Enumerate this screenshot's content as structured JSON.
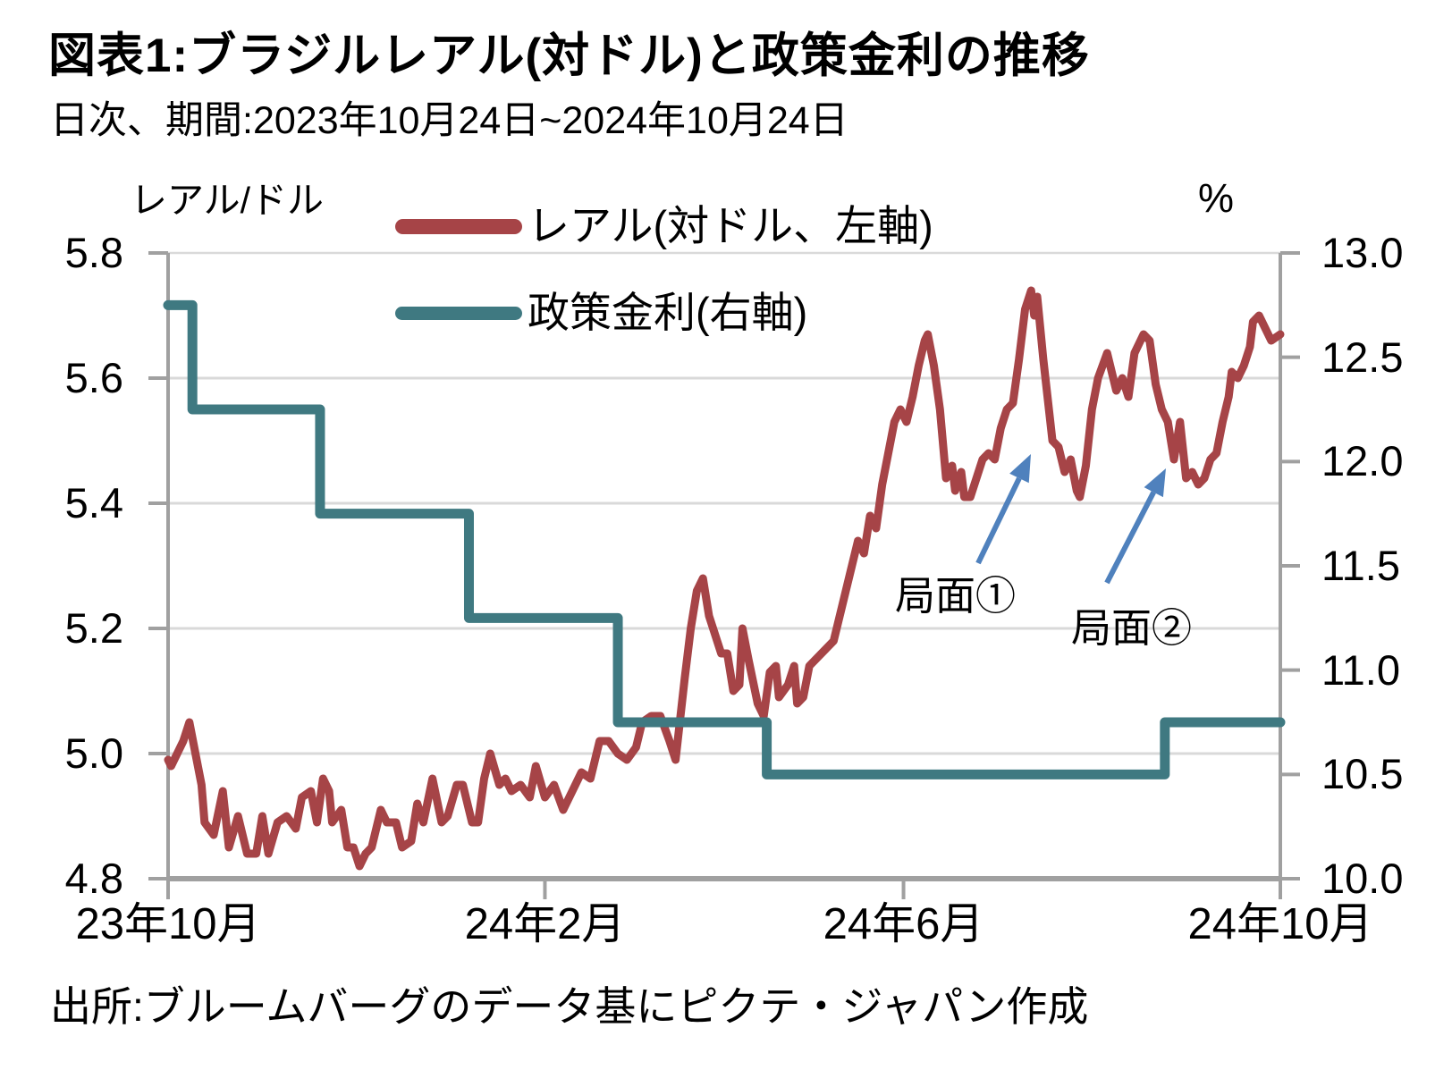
{
  "header": {
    "title": "図表1:ブラジルレアル(対ドル)と政策金利の推移",
    "subtitle": "日次、期間:2023年10月24日~2024年10月24日"
  },
  "footer": {
    "source": "出所:ブルームバーグのデータ基にピクテ・ジャパン作成"
  },
  "legend": {
    "items": [
      {
        "label": "レアル(対ドル、左軸)",
        "color": "#A64447"
      },
      {
        "label": "政策金利(右軸)",
        "color": "#3F7981"
      }
    ]
  },
  "annotations": {
    "arrow_color": "#4F81BD",
    "items": [
      {
        "label": "局面①",
        "arrow": {
          "from": [
            1094,
            630
          ],
          "to": [
            1153,
            508
          ]
        }
      },
      {
        "label": "局面②",
        "arrow": {
          "from": [
            1238,
            652
          ],
          "to": [
            1304,
            524
          ]
        }
      }
    ]
  },
  "chart_data": {
    "type": "line",
    "title": "図表1:ブラジルレアル(対ドル)と政策金利の推移",
    "subtitle": "日次、期間:2023年10月24日~2024年10月24日",
    "grid": "horizontal",
    "legend_position": "top-inside",
    "x_axis": {
      "unit": "days since 2023-10-24",
      "range": [
        0,
        366
      ],
      "tick_days": [
        0,
        124,
        242,
        366
      ],
      "tick_labels": [
        "23年10月",
        "24年2月",
        "24年6月",
        "24年10月"
      ]
    },
    "left_axis": {
      "title": "レアル/ドル",
      "min": 4.8,
      "max": 5.8,
      "ticks": [
        5.8,
        5.6,
        5.4,
        5.2,
        5.0,
        4.8
      ],
      "tick_labels": [
        "5.8",
        "5.6",
        "5.4",
        "5.2",
        "5.0",
        "4.8"
      ]
    },
    "right_axis": {
      "title": "%",
      "min": 10.0,
      "max": 13.0,
      "ticks": [
        13.0,
        12.5,
        12.0,
        11.5,
        11.0,
        10.5,
        10.0
      ],
      "tick_labels": [
        "13.0",
        "12.5",
        "12.0",
        "11.5",
        "11.0",
        "10.5",
        "10.0"
      ]
    },
    "series": [
      {
        "name": "レアル(対ドル、左軸)",
        "axis": "left",
        "color": "#A64447",
        "style": "line",
        "points": [
          [
            0,
            4.99
          ],
          [
            1,
            4.98
          ],
          [
            3,
            5.0
          ],
          [
            5,
            5.02
          ],
          [
            7,
            5.05
          ],
          [
            9,
            5.0
          ],
          [
            11,
            4.95
          ],
          [
            12,
            4.89
          ],
          [
            15,
            4.87
          ],
          [
            18,
            4.94
          ],
          [
            20,
            4.85
          ],
          [
            23,
            4.9
          ],
          [
            26,
            4.84
          ],
          [
            29,
            4.84
          ],
          [
            31,
            4.9
          ],
          [
            33,
            4.84
          ],
          [
            36,
            4.89
          ],
          [
            39,
            4.9
          ],
          [
            42,
            4.88
          ],
          [
            44,
            4.93
          ],
          [
            47,
            4.94
          ],
          [
            49,
            4.89
          ],
          [
            51,
            4.96
          ],
          [
            53,
            4.94
          ],
          [
            54,
            4.89
          ],
          [
            57,
            4.91
          ],
          [
            59,
            4.85
          ],
          [
            61,
            4.85
          ],
          [
            63,
            4.82
          ],
          [
            65,
            4.84
          ],
          [
            67,
            4.85
          ],
          [
            70,
            4.91
          ],
          [
            72,
            4.89
          ],
          [
            75,
            4.89
          ],
          [
            77,
            4.85
          ],
          [
            80,
            4.86
          ],
          [
            82,
            4.92
          ],
          [
            84,
            4.89
          ],
          [
            87,
            4.96
          ],
          [
            90,
            4.89
          ],
          [
            92,
            4.9
          ],
          [
            95,
            4.95
          ],
          [
            97,
            4.95
          ],
          [
            100,
            4.89
          ],
          [
            102,
            4.89
          ],
          [
            104,
            4.96
          ],
          [
            106,
            5.0
          ],
          [
            109,
            4.95
          ],
          [
            111,
            4.96
          ],
          [
            113,
            4.94
          ],
          [
            116,
            4.95
          ],
          [
            119,
            4.93
          ],
          [
            121,
            4.98
          ],
          [
            124,
            4.93
          ],
          [
            127,
            4.95
          ],
          [
            130,
            4.91
          ],
          [
            133,
            4.94
          ],
          [
            136,
            4.97
          ],
          [
            139,
            4.96
          ],
          [
            142,
            5.02
          ],
          [
            145,
            5.02
          ],
          [
            148,
            5.0
          ],
          [
            151,
            4.99
          ],
          [
            154,
            5.01
          ],
          [
            156,
            5.05
          ],
          [
            159,
            5.06
          ],
          [
            162,
            5.06
          ],
          [
            165,
            5.02
          ],
          [
            167,
            4.99
          ],
          [
            170,
            5.12
          ],
          [
            172,
            5.2
          ],
          [
            174,
            5.26
          ],
          [
            176,
            5.28
          ],
          [
            178,
            5.22
          ],
          [
            180,
            5.19
          ],
          [
            182,
            5.16
          ],
          [
            184,
            5.16
          ],
          [
            186,
            5.1
          ],
          [
            188,
            5.11
          ],
          [
            189,
            5.2
          ],
          [
            191,
            5.15
          ],
          [
            194,
            5.08
          ],
          [
            196,
            5.06
          ],
          [
            198,
            5.13
          ],
          [
            200,
            5.14
          ],
          [
            201,
            5.09
          ],
          [
            204,
            5.11
          ],
          [
            206,
            5.14
          ],
          [
            207,
            5.08
          ],
          [
            209,
            5.09
          ],
          [
            211,
            5.14
          ],
          [
            213,
            5.15
          ],
          [
            215,
            5.16
          ],
          [
            219,
            5.18
          ],
          [
            223,
            5.26
          ],
          [
            225,
            5.3
          ],
          [
            227,
            5.34
          ],
          [
            229,
            5.32
          ],
          [
            231,
            5.38
          ],
          [
            233,
            5.36
          ],
          [
            235,
            5.43
          ],
          [
            237,
            5.48
          ],
          [
            239,
            5.53
          ],
          [
            241,
            5.55
          ],
          [
            243,
            5.53
          ],
          [
            245,
            5.57
          ],
          [
            247,
            5.62
          ],
          [
            249,
            5.66
          ],
          [
            250,
            5.67
          ],
          [
            252,
            5.62
          ],
          [
            254,
            5.55
          ],
          [
            256,
            5.44
          ],
          [
            258,
            5.46
          ],
          [
            259,
            5.42
          ],
          [
            261,
            5.45
          ],
          [
            262,
            5.41
          ],
          [
            264,
            5.41
          ],
          [
            266,
            5.44
          ],
          [
            268,
            5.47
          ],
          [
            270,
            5.48
          ],
          [
            272,
            5.47
          ],
          [
            274,
            5.52
          ],
          [
            276,
            5.55
          ],
          [
            278,
            5.56
          ],
          [
            280,
            5.63
          ],
          [
            282,
            5.71
          ],
          [
            284,
            5.74
          ],
          [
            285,
            5.7
          ],
          [
            286,
            5.73
          ],
          [
            288,
            5.63
          ],
          [
            291,
            5.5
          ],
          [
            293,
            5.49
          ],
          [
            295,
            5.45
          ],
          [
            297,
            5.47
          ],
          [
            299,
            5.42
          ],
          [
            300,
            5.41
          ],
          [
            302,
            5.46
          ],
          [
            304,
            5.55
          ],
          [
            306,
            5.6
          ],
          [
            309,
            5.64
          ],
          [
            310,
            5.62
          ],
          [
            312,
            5.58
          ],
          [
            314,
            5.6
          ],
          [
            316,
            5.57
          ],
          [
            318,
            5.64
          ],
          [
            321,
            5.67
          ],
          [
            323,
            5.66
          ],
          [
            325,
            5.59
          ],
          [
            327,
            5.55
          ],
          [
            329,
            5.53
          ],
          [
            331,
            5.47
          ],
          [
            333,
            5.53
          ],
          [
            335,
            5.44
          ],
          [
            337,
            5.45
          ],
          [
            339,
            5.43
          ],
          [
            341,
            5.44
          ],
          [
            343,
            5.47
          ],
          [
            345,
            5.48
          ],
          [
            347,
            5.53
          ],
          [
            349,
            5.57
          ],
          [
            350,
            5.61
          ],
          [
            352,
            5.6
          ],
          [
            354,
            5.62
          ],
          [
            356,
            5.65
          ],
          [
            357,
            5.69
          ],
          [
            359,
            5.7
          ],
          [
            361,
            5.68
          ],
          [
            363,
            5.66
          ],
          [
            366,
            5.67
          ]
        ]
      },
      {
        "name": "政策金利(右軸)",
        "axis": "right",
        "color": "#3F7981",
        "style": "step",
        "points": [
          [
            0,
            12.75
          ],
          [
            8,
            12.25
          ],
          [
            50,
            11.75
          ],
          [
            99,
            11.25
          ],
          [
            148,
            10.75
          ],
          [
            197,
            10.5
          ],
          [
            328,
            10.75
          ],
          [
            366,
            10.75
          ]
        ]
      }
    ]
  },
  "style": {
    "grid_color": "#D9D9D9",
    "axis_color": "#A0A0A0",
    "text_color": "#000000",
    "background": "#FFFFFF"
  }
}
